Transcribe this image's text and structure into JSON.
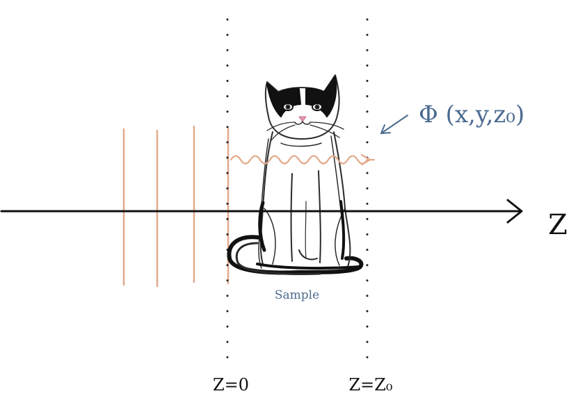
{
  "axis": {
    "label": "Z"
  },
  "planes": {
    "origin_label": "Z=0",
    "end_label": "Z=Z₀"
  },
  "sample": {
    "label": "Sample"
  },
  "field": {
    "label": "Φ (x,y,z₀)"
  },
  "colors": {
    "wavefront": "#e3a98a",
    "annotation": "#4a6a8f",
    "axis": "#111111"
  }
}
